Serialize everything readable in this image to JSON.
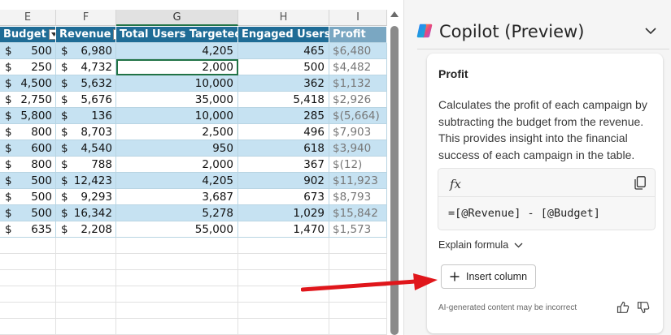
{
  "sheet": {
    "column_letters": [
      "E",
      "F",
      "G",
      "H",
      "I"
    ],
    "selected_column": "G",
    "headers": [
      "Budget",
      "Revenue",
      "Total Users Targeted",
      "Engaged Users",
      "Profit"
    ],
    "rows": [
      {
        "budget": "500",
        "revenue": "6,980",
        "targeted": "4,205",
        "engaged": "465",
        "profit": "$6,480"
      },
      {
        "budget": "250",
        "revenue": "4,732",
        "targeted": "2,000",
        "engaged": "500",
        "profit": "$4,482"
      },
      {
        "budget": "4,500",
        "revenue": "5,632",
        "targeted": "10,000",
        "engaged": "362",
        "profit": "$1,132"
      },
      {
        "budget": "2,750",
        "revenue": "5,676",
        "targeted": "35,000",
        "engaged": "5,418",
        "profit": "$2,926"
      },
      {
        "budget": "5,800",
        "revenue": "136",
        "targeted": "10,000",
        "engaged": "285",
        "profit": "$(5,664)"
      },
      {
        "budget": "800",
        "revenue": "8,703",
        "targeted": "2,500",
        "engaged": "496",
        "profit": "$7,903"
      },
      {
        "budget": "600",
        "revenue": "4,540",
        "targeted": "950",
        "engaged": "618",
        "profit": "$3,940"
      },
      {
        "budget": "800",
        "revenue": "788",
        "targeted": "2,000",
        "engaged": "367",
        "profit": "$(12)"
      },
      {
        "budget": "500",
        "revenue": "12,423",
        "targeted": "4,205",
        "engaged": "902",
        "profit": "$11,923"
      },
      {
        "budget": "500",
        "revenue": "9,293",
        "targeted": "3,687",
        "engaged": "673",
        "profit": "$8,793"
      },
      {
        "budget": "500",
        "revenue": "16,342",
        "targeted": "5,278",
        "engaged": "1,029",
        "profit": "$15,842"
      },
      {
        "budget": "635",
        "revenue": "2,208",
        "targeted": "55,000",
        "engaged": "1,470",
        "profit": "$1,573"
      }
    ],
    "currency_symbol": "$",
    "active_cell": "G row 2",
    "colors": {
      "header_bg": "#1f6c96",
      "band_bg": "#c6e2f2",
      "profit_header_bg": "#7aa7c2"
    }
  },
  "copilot": {
    "title": "Copilot (Preview)",
    "card": {
      "heading": "Profit",
      "description": "Calculates the profit of each campaign by subtracting the budget from the revenue. This provides insight into the financial success of each campaign in the table.",
      "fx_label": "fx",
      "formula": "=[@Revenue] - [@Budget]",
      "explain_label": "Explain formula",
      "insert_label": "Insert column",
      "disclaimer": "AI-generated content may be incorrect"
    },
    "icons": [
      "copilot-logo-icon",
      "chevron-down-icon",
      "copy-icon",
      "plus-icon",
      "thumbs-up-icon",
      "thumbs-down-icon"
    ]
  },
  "annotation": {
    "arrow_color": "#e0161b"
  }
}
